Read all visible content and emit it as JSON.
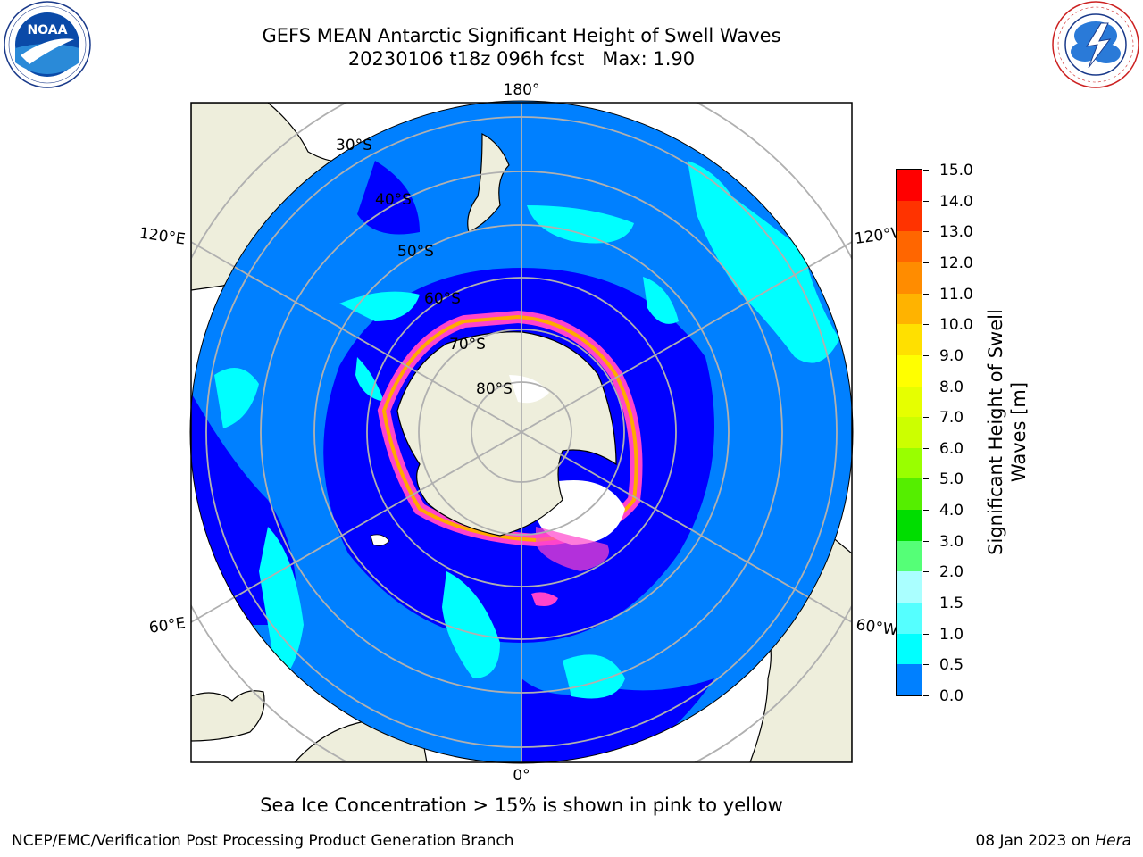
{
  "title": {
    "line1": "GEFS MEAN Antarctic Significant Height of Swell Waves",
    "line2": "20230106 t18z 096h fcst   Max: 1.90"
  },
  "logos": {
    "left": {
      "name": "noaa-logo",
      "text": "NOAA",
      "ring_text": "NATIONAL OCEANIC AND ATMOSPHERIC ADMINISTRATION · U.S. DEPARTMENT OF COMMERCE"
    },
    "right": {
      "name": "nws-logo",
      "ring_text": "NATIONAL WEATHER SERVICE"
    }
  },
  "map": {
    "projection": "south-polar-stereographic",
    "longitude_labels": {
      "top": "180°",
      "bottom": "0°",
      "upper_left": "120°E",
      "upper_right": "120°W",
      "lower_left": "60°E",
      "lower_right": "60°W"
    },
    "latitude_labels": [
      "30°S",
      "40°S",
      "50°S",
      "60°S",
      "70°S",
      "80°S"
    ],
    "colors": {
      "land": "#eeeedc",
      "ocean_0_0_5": "#0000ff",
      "ocean_0_5_1_0": "#0080ff",
      "ocean_1_0_1_5": "#00ffff",
      "sea_ice": "#ff44cc",
      "ice_edge": "#ffaa00",
      "grid": "#b0b0b0"
    }
  },
  "colorbar": {
    "label_line1": "Significant Height of Swell",
    "label_line2": "Waves [m]",
    "ticks": [
      "15.0",
      "14.0",
      "13.0",
      "12.0",
      "11.0",
      "10.0",
      "9.0",
      "8.0",
      "7.0",
      "6.0",
      "5.0",
      "4.0",
      "3.0",
      "2.0",
      "1.5",
      "1.0",
      "0.5",
      "0.0"
    ],
    "colors": [
      "#ff0000",
      "#ff3300",
      "#ff6600",
      "#ff8c00",
      "#ffb300",
      "#ffe000",
      "#ffff00",
      "#e6ff00",
      "#ccff00",
      "#99ff00",
      "#55ee00",
      "#00dd00",
      "#55ff77",
      "#aaffff",
      "#55ffff",
      "#00ffff",
      "#0080ff",
      "#0000ff"
    ]
  },
  "note": "Sea Ice Concentration > 15% is shown in pink to yellow",
  "footer": {
    "left": "NCEP/EMC/Verification Post Processing Product Generation Branch",
    "right_date": "08 Jan 2023 on ",
    "right_machine": "Hera"
  }
}
